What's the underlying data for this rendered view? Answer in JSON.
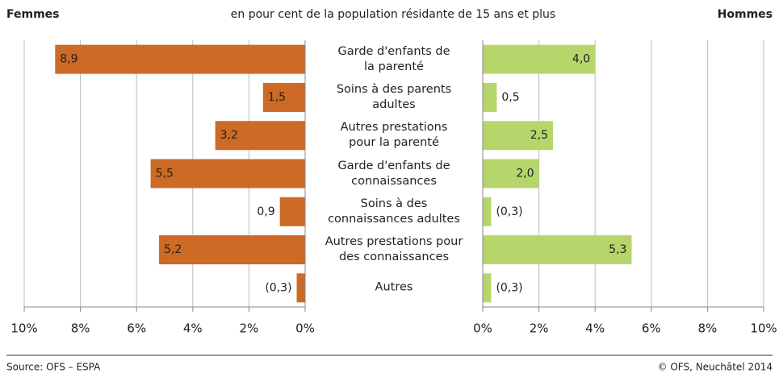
{
  "chart_data": {
    "type": "butterfly",
    "subtitle": "en pour cent de la population résidante de 15 ans et plus",
    "categories": [
      "Garde d'enfants de\nla parenté",
      "Soins à des parents\nadultes",
      "Autres prestations\npour la parenté",
      "Garde d'enfants de\nconnaissances",
      "Soins à des\nconnaissances adultes",
      "Autres prestations pour\ndes connaissances",
      "Autres"
    ],
    "series": [
      {
        "name": "Femmes",
        "color": "#cc6a26",
        "values": [
          8.9,
          1.5,
          3.2,
          5.5,
          0.9,
          5.2,
          0.3
        ],
        "value_labels": [
          "8,9",
          "1,5",
          "3,2",
          "5,5",
          "0,9",
          "5,2",
          "(0,3)"
        ]
      },
      {
        "name": "Hommes",
        "color": "#b6d66c",
        "values": [
          4.0,
          0.5,
          2.5,
          2.0,
          0.3,
          5.3,
          0.3
        ],
        "value_labels": [
          "4,0",
          "0,5",
          "2,5",
          "2,0",
          "(0,3)",
          "5,3",
          "(0,3)"
        ]
      }
    ],
    "xlim": [
      0,
      10
    ],
    "xticks": [
      {
        "value": 0,
        "label": "0%"
      },
      {
        "value": 2,
        "label": "2%"
      },
      {
        "value": 4,
        "label": "4%"
      },
      {
        "value": 6,
        "label": "6%"
      },
      {
        "value": 8,
        "label": "8%"
      },
      {
        "value": 10,
        "label": "10%"
      }
    ],
    "grid": true,
    "source": "Source: OFS – ESPA",
    "copyright": "© OFS, Neuchâtel 2014"
  }
}
